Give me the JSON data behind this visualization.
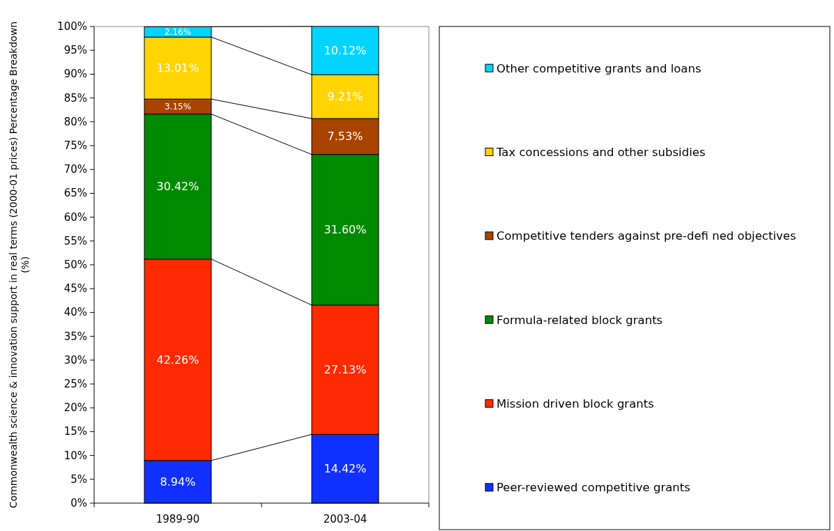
{
  "chart_data": {
    "type": "bar",
    "stacked": true,
    "ylabel": "Commonwealth science & innovation support in real terms (2000-01 prices) Percentage Breakdown\n(%)",
    "categories": [
      "1989-90",
      "2003-04"
    ],
    "series": [
      {
        "name": "Peer-reviewed competitive grants",
        "color": "#1030ff",
        "values": [
          8.94,
          14.42
        ],
        "value_labels": [
          "8.94%",
          "14.42%"
        ]
      },
      {
        "name": "Mission driven block grants",
        "color": "#ff2a00",
        "values": [
          42.26,
          27.13
        ],
        "value_labels": [
          "42.26%",
          "27.13%"
        ]
      },
      {
        "name": "Formula-related block grants",
        "color": "#008a00",
        "values": [
          30.42,
          31.6
        ],
        "value_labels": [
          "30.42%",
          "31.60%"
        ]
      },
      {
        "name": "Competitive tenders against pre-defi ned objectives",
        "color": "#a84400",
        "values": [
          3.15,
          7.53
        ],
        "value_labels": [
          "3.15%",
          "7.53%"
        ]
      },
      {
        "name": "Tax concessions and other subsidies",
        "color": "#ffd400",
        "values": [
          13.01,
          9.21
        ],
        "value_labels": [
          "13.01%",
          "9.21%"
        ]
      },
      {
        "name": "Other competitive grants and loans",
        "color": "#00d4ff",
        "values": [
          2.16,
          10.12
        ],
        "value_labels": [
          "2.16%",
          "10.12%"
        ]
      }
    ],
    "ylim": [
      0,
      100
    ],
    "yticks": [
      {
        "value": 0,
        "label": "0%"
      },
      {
        "value": 5,
        "label": "5%"
      },
      {
        "value": 10,
        "label": "10%"
      },
      {
        "value": 15,
        "label": "15%"
      },
      {
        "value": 20,
        "label": "20%"
      },
      {
        "value": 25,
        "label": "25%"
      },
      {
        "value": 30,
        "label": "30%"
      },
      {
        "value": 35,
        "label": "35%"
      },
      {
        "value": 40,
        "label": "40%"
      },
      {
        "value": 45,
        "label": "45%"
      },
      {
        "value": 50,
        "label": "50%"
      },
      {
        "value": 55,
        "label": "55%"
      },
      {
        "value": 60,
        "label": "60%"
      },
      {
        "value": 65,
        "label": "65%"
      },
      {
        "value": 70,
        "label": "70%"
      },
      {
        "value": 75,
        "label": "75%"
      },
      {
        "value": 80,
        "label": "80%"
      },
      {
        "value": 85,
        "label": "85%"
      },
      {
        "value": 90,
        "label": "90%"
      },
      {
        "value": 95,
        "label": "95%"
      },
      {
        "value": 100,
        "label": "100%"
      }
    ],
    "grid": false,
    "legend": "right"
  }
}
